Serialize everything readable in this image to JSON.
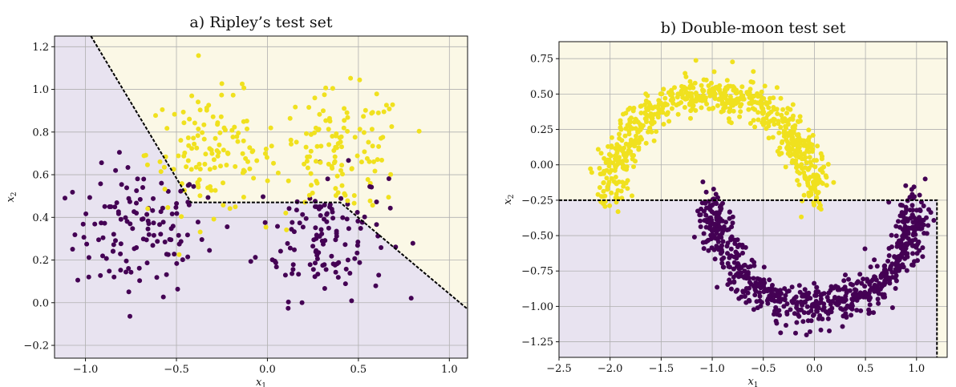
{
  "chart_data": [
    {
      "type": "scatter",
      "title": "a) Ripley’s test set",
      "xlabel": "x",
      "xlabel_sub": "1",
      "ylabel": "x",
      "ylabel_sub": "2",
      "xlim": [
        -1.17,
        1.1
      ],
      "ylim": [
        -0.26,
        1.25
      ],
      "xticks": [
        -1.0,
        -0.5,
        0.0,
        0.5,
        1.0
      ],
      "xtick_labels": [
        "−1.0",
        "−0.5",
        "0.0",
        "0.5",
        "1.0"
      ],
      "yticks": [
        -0.2,
        0.0,
        0.2,
        0.4,
        0.6,
        0.8,
        1.0,
        1.2
      ],
      "ytick_labels": [
        "−0.2",
        "0.0",
        "0.2",
        "0.4",
        "0.6",
        "0.8",
        "1.0",
        "1.2"
      ],
      "grid": true,
      "region_colors": {
        "class0": "#e8e3f0",
        "class1": "#fbf8e6"
      },
      "decision_boundary": {
        "x": [
          -0.97,
          -0.42,
          0.4,
          1.1
        ],
        "y": [
          1.25,
          0.47,
          0.47,
          -0.03
        ]
      },
      "series": [
        {
          "class": 0,
          "color": "#440154",
          "centers": [
            [
              -0.7,
              0.33
            ],
            [
              0.3,
              0.32
            ]
          ],
          "spread": [
            0.18,
            0.15
          ],
          "count": 250
        },
        {
          "class": 1,
          "color": "#f0e11e",
          "centers": [
            [
              -0.3,
              0.7
            ],
            [
              0.4,
              0.71
            ]
          ],
          "spread": [
            0.18,
            0.14
          ],
          "count": 250
        }
      ]
    },
    {
      "type": "scatter",
      "title": "b) Double-moon test set",
      "xlabel": "x",
      "xlabel_sub": "1",
      "ylabel": "x",
      "ylabel_sub": "2",
      "xlim": [
        -2.5,
        1.3
      ],
      "ylim": [
        -1.36,
        0.87
      ],
      "xticks": [
        -2.5,
        -2.0,
        -1.5,
        -1.0,
        -0.5,
        0.0,
        0.5,
        1.0
      ],
      "xtick_labels": [
        "−2.5",
        "−2.0",
        "−1.5",
        "−1.0",
        "−0.5",
        "0.0",
        "0.5",
        "1.0"
      ],
      "yticks": [
        -1.25,
        -1.0,
        -0.75,
        -0.5,
        -0.25,
        0.0,
        0.25,
        0.5,
        0.75
      ],
      "ytick_labels": [
        "−1.25",
        "−1.00",
        "−0.75",
        "−0.50",
        "−0.25",
        "0.00",
        "0.25",
        "0.50",
        "0.75"
      ],
      "grid": true,
      "region_colors": {
        "class0": "#e8e3f0",
        "class1": "#fbf8e6"
      },
      "decision_boundary": {
        "x": [
          -2.5,
          1.2,
          1.2
        ],
        "y": [
          -0.25,
          -0.25,
          -1.36
        ]
      },
      "series": [
        {
          "class": 0,
          "color": "#440154",
          "shape": "lower-moon",
          "center": [
            0.0,
            -0.25
          ],
          "radius": [
            1.0,
            0.75
          ],
          "count": 700
        },
        {
          "class": 1,
          "color": "#f0e11e",
          "shape": "upper-moon",
          "center": [
            -1.0,
            -0.25
          ],
          "radius": [
            1.0,
            0.75
          ],
          "count": 700
        }
      ]
    }
  ]
}
